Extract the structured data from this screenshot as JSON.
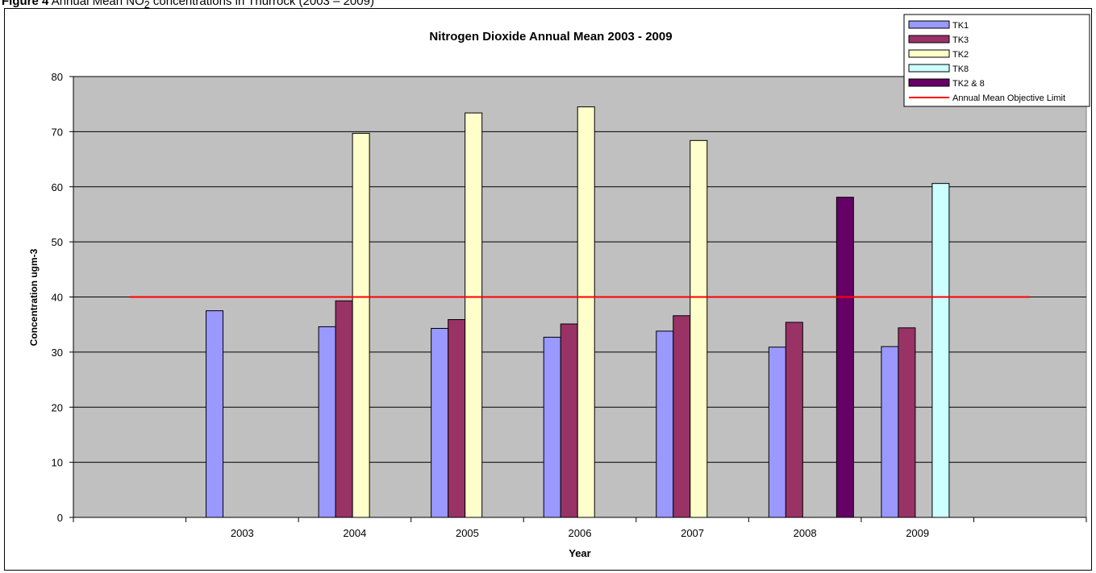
{
  "caption": {
    "prefix": "Figure 4",
    "text": " Annual Mean NO",
    "subscript": "2",
    "suffix": " concentrations in Thurrock (2003 – 2009)"
  },
  "colors": {
    "plot_bg": "#c0c0c0",
    "objective_line": "#ff0000",
    "TK1": "#9999ff",
    "TK3": "#993366",
    "TK2": "#ffffcc",
    "TK8": "#ccffff",
    "TK2 & 8": "#660066"
  },
  "chart_data": {
    "type": "bar",
    "title": "Nitrogen Dioxide Annual Mean 2003 - 2009",
    "xlabel": "Year",
    "ylabel": "Concentration ugm-3",
    "ylim": [
      0,
      80
    ],
    "yticks": [
      0,
      10,
      20,
      30,
      40,
      50,
      60,
      70,
      80
    ],
    "grid": true,
    "legend_position": "top-right",
    "categories": [
      "2003",
      "2004",
      "2005",
      "2006",
      "2007",
      "2008",
      "2009"
    ],
    "series": [
      {
        "name": "TK1",
        "values": [
          37.5,
          34.6,
          34.3,
          32.7,
          33.8,
          30.9,
          31.0
        ]
      },
      {
        "name": "TK3",
        "values": [
          null,
          39.3,
          35.9,
          35.1,
          36.6,
          35.4,
          34.4
        ]
      },
      {
        "name": "TK2",
        "values": [
          null,
          69.7,
          73.4,
          74.5,
          68.4,
          null,
          null
        ]
      },
      {
        "name": "TK8",
        "values": [
          null,
          null,
          null,
          null,
          null,
          null,
          60.6
        ]
      },
      {
        "name": "TK2 & 8",
        "values": [
          null,
          null,
          null,
          null,
          null,
          58.1,
          null
        ]
      }
    ],
    "reference_line": {
      "name": "Annual Mean Objective Limit",
      "value": 40
    }
  }
}
